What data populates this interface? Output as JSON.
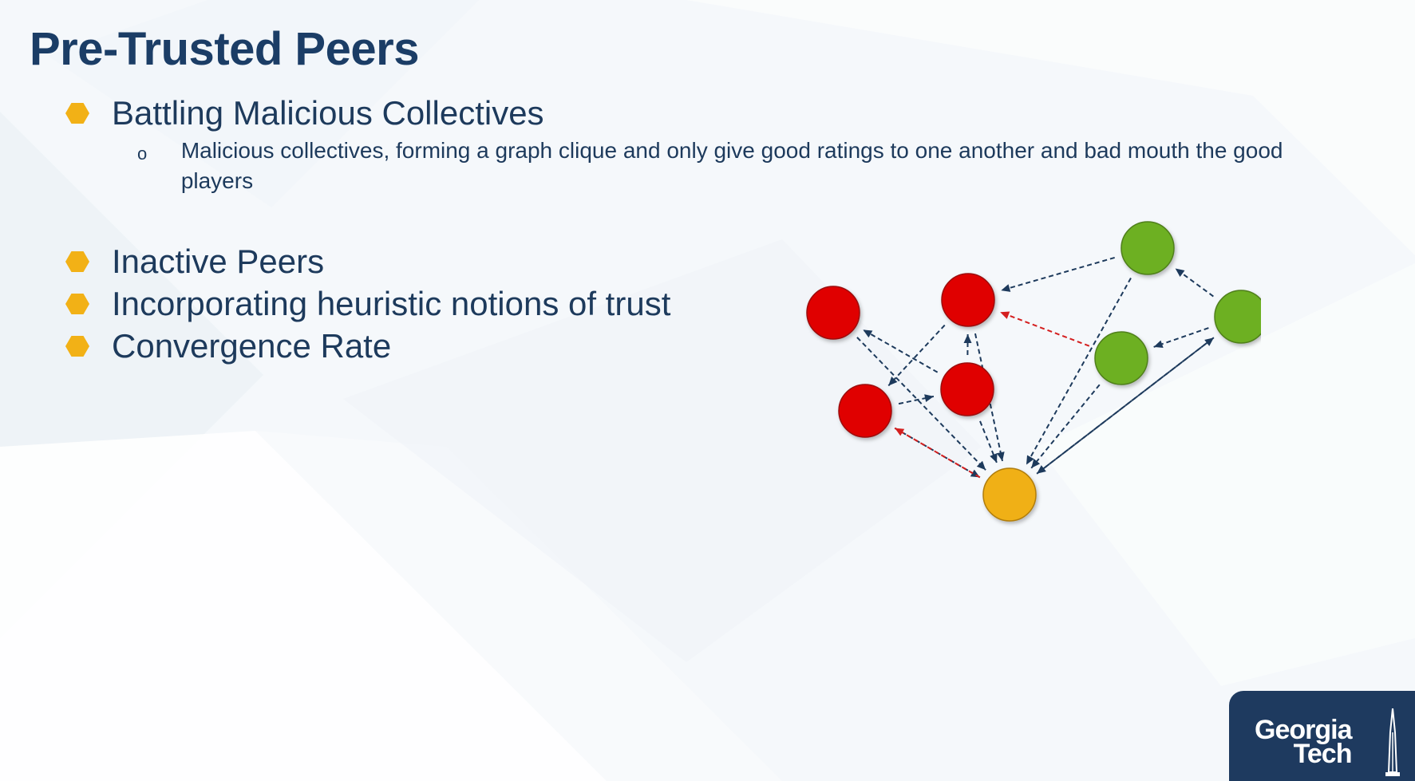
{
  "slide": {
    "title": "Pre-Trusted Peers",
    "bullets": [
      {
        "text": "Battling Malicious Collectives",
        "sub": [
          {
            "marker": "o",
            "text": "Malicious collectives, forming a graph clique and only give good ratings to one another and bad mouth the good players"
          }
        ]
      },
      {
        "text": "Inactive Peers"
      },
      {
        "text": "Incorporating heuristic notions of trust"
      },
      {
        "text": "Convergence Rate"
      }
    ],
    "colors": {
      "title": "#1b3d66",
      "text": "#1d3a5c",
      "bullet_hex": "#f2b116",
      "malicious_node": "#e00000",
      "good_node": "#6db021",
      "pretrusted_node": "#f0b015",
      "edge_normal": "#1d3a5c",
      "edge_highlight": "#d41f1f",
      "logo_bg": "#1e3a5f"
    }
  },
  "diagram": {
    "nodes": [
      {
        "id": "r1",
        "kind": "malicious"
      },
      {
        "id": "r2",
        "kind": "malicious"
      },
      {
        "id": "r3",
        "kind": "malicious"
      },
      {
        "id": "r4",
        "kind": "malicious"
      },
      {
        "id": "g1",
        "kind": "good"
      },
      {
        "id": "g2",
        "kind": "good"
      },
      {
        "id": "g3",
        "kind": "good"
      },
      {
        "id": "y",
        "kind": "pretrusted"
      }
    ],
    "edges": [
      {
        "from": "g1",
        "to": "r2",
        "style": "normal"
      },
      {
        "from": "g3",
        "to": "g1",
        "style": "normal"
      },
      {
        "from": "g3",
        "to": "g2",
        "style": "normal"
      },
      {
        "from": "g2",
        "to": "r2",
        "style": "highlight"
      },
      {
        "from": "r2",
        "to": "r4",
        "style": "normal"
      },
      {
        "from": "r3",
        "to": "r1",
        "style": "normal"
      },
      {
        "from": "r3",
        "to": "r2",
        "style": "normal"
      },
      {
        "from": "r4",
        "to": "r3",
        "style": "normal"
      },
      {
        "from": "r1",
        "to": "y",
        "style": "normal"
      },
      {
        "from": "r4",
        "to": "y",
        "style": "normal"
      },
      {
        "from": "r2",
        "to": "y",
        "style": "normal"
      },
      {
        "from": "r3",
        "to": "y",
        "style": "normal"
      },
      {
        "from": "g1",
        "to": "y",
        "style": "normal"
      },
      {
        "from": "g2",
        "to": "y",
        "style": "normal"
      },
      {
        "from": "g3",
        "to": "y",
        "style": "normal"
      },
      {
        "from": "y",
        "to": "g3",
        "style": "normal"
      },
      {
        "from": "y",
        "to": "r4",
        "style": "highlight"
      }
    ]
  },
  "logo": {
    "line1": "Georgia",
    "line2": "Tech"
  }
}
